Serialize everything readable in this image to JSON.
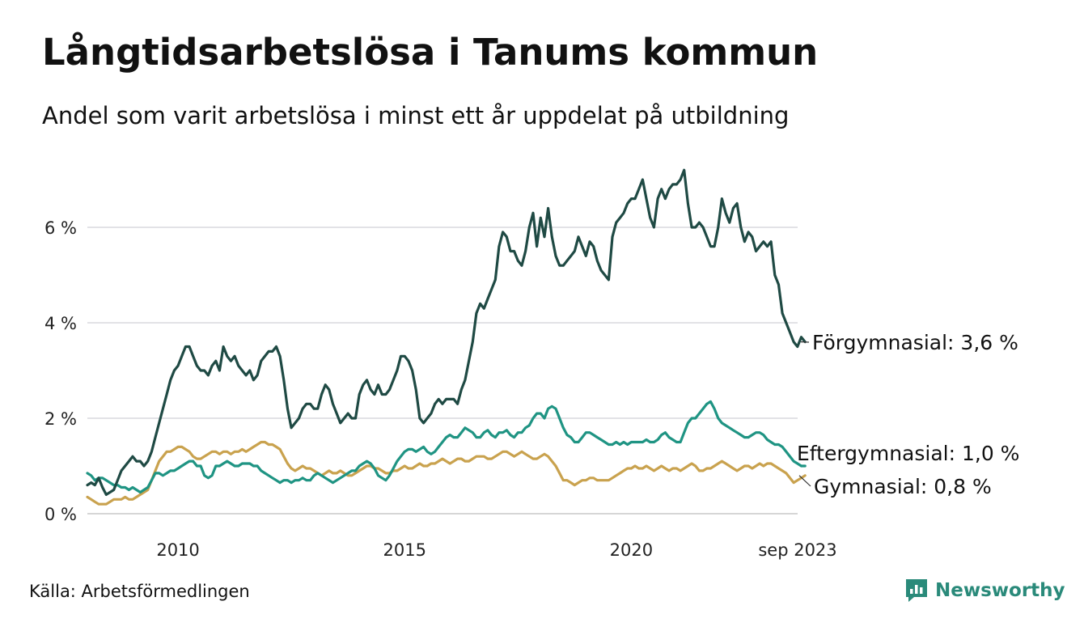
{
  "title": "Långtidsarbetslösa i Tanums kommun",
  "subtitle": "Andel som varit arbetslösa i minst ett år uppdelat på utbildning",
  "source": "Källa: Arbetsförmedlingen",
  "logo": {
    "text": "Newsworthy",
    "icon": "newsworthy-chart-icon",
    "color": "#2a8a7a"
  },
  "chart_data": {
    "type": "line",
    "title": "Långtidsarbetslösa i Tanums kommun",
    "xlabel": "",
    "ylabel": "",
    "x_start": 2008.0,
    "x_step": 0.0833333,
    "xlim": [
      2008.0,
      2023.67
    ],
    "ylim": [
      0,
      7.3
    ],
    "y_ticks": [
      0,
      2,
      4,
      6
    ],
    "y_tick_labels": [
      "0 %",
      "2 %",
      "4 %",
      "6 %"
    ],
    "x_ticks": [
      2010,
      2015,
      2020,
      2023.67
    ],
    "x_tick_labels": [
      "2010",
      "2015",
      "2020",
      "sep 2023"
    ],
    "grid": true,
    "series": [
      {
        "name": "Förgymnasial",
        "label": "Förgymnasial: 3,6 %",
        "color": "#1f4a44",
        "values": [
          0.6,
          0.65,
          0.6,
          0.75,
          0.55,
          0.4,
          0.45,
          0.5,
          0.7,
          0.9,
          1.0,
          1.1,
          1.2,
          1.1,
          1.1,
          1.0,
          1.1,
          1.3,
          1.6,
          1.9,
          2.2,
          2.5,
          2.8,
          3.0,
          3.1,
          3.3,
          3.5,
          3.5,
          3.3,
          3.1,
          3.0,
          3.0,
          2.9,
          3.1,
          3.2,
          3.0,
          3.5,
          3.3,
          3.2,
          3.3,
          3.1,
          3.0,
          2.9,
          3.0,
          2.8,
          2.9,
          3.2,
          3.3,
          3.4,
          3.4,
          3.5,
          3.3,
          2.8,
          2.2,
          1.8,
          1.9,
          2.0,
          2.2,
          2.3,
          2.3,
          2.2,
          2.2,
          2.5,
          2.7,
          2.6,
          2.3,
          2.1,
          1.9,
          2.0,
          2.1,
          2.0,
          2.0,
          2.5,
          2.7,
          2.8,
          2.6,
          2.5,
          2.7,
          2.5,
          2.5,
          2.6,
          2.8,
          3.0,
          3.3,
          3.3,
          3.2,
          3.0,
          2.6,
          2.0,
          1.9,
          2.0,
          2.1,
          2.3,
          2.4,
          2.3,
          2.4,
          2.4,
          2.4,
          2.3,
          2.6,
          2.8,
          3.2,
          3.6,
          4.2,
          4.4,
          4.3,
          4.5,
          4.7,
          4.9,
          5.6,
          5.9,
          5.8,
          5.5,
          5.5,
          5.3,
          5.2,
          5.5,
          6.0,
          6.3,
          5.6,
          6.2,
          5.8,
          6.4,
          5.8,
          5.4,
          5.2,
          5.2,
          5.3,
          5.4,
          5.5,
          5.8,
          5.6,
          5.4,
          5.7,
          5.6,
          5.3,
          5.1,
          5.0,
          4.9,
          5.8,
          6.1,
          6.2,
          6.3,
          6.5,
          6.6,
          6.6,
          6.8,
          7.0,
          6.6,
          6.2,
          6.0,
          6.6,
          6.8,
          6.6,
          6.8,
          6.9,
          6.9,
          7.0,
          7.2,
          6.5,
          6.0,
          6.0,
          6.1,
          6.0,
          5.8,
          5.6,
          5.6,
          6.0,
          6.6,
          6.3,
          6.1,
          6.4,
          6.5,
          6.0,
          5.7,
          5.9,
          5.8,
          5.5,
          5.6,
          5.7,
          5.6,
          5.7,
          5.0,
          4.8,
          4.2,
          4.0,
          3.8,
          3.6,
          3.5,
          3.7,
          3.6
        ]
      },
      {
        "name": "Eftergymnasial",
        "label": "Eftergymnasial: 1,0 %",
        "color": "#1f9483",
        "values": [
          0.85,
          0.8,
          0.7,
          0.75,
          0.75,
          0.7,
          0.65,
          0.6,
          0.6,
          0.55,
          0.55,
          0.5,
          0.55,
          0.5,
          0.45,
          0.5,
          0.55,
          0.7,
          0.85,
          0.85,
          0.8,
          0.85,
          0.9,
          0.9,
          0.95,
          1.0,
          1.05,
          1.1,
          1.1,
          1.0,
          1.0,
          0.8,
          0.75,
          0.8,
          1.0,
          1.0,
          1.05,
          1.1,
          1.05,
          1.0,
          1.0,
          1.05,
          1.05,
          1.05,
          1.0,
          1.0,
          0.9,
          0.85,
          0.8,
          0.75,
          0.7,
          0.65,
          0.7,
          0.7,
          0.65,
          0.7,
          0.7,
          0.75,
          0.7,
          0.7,
          0.8,
          0.85,
          0.8,
          0.75,
          0.7,
          0.65,
          0.7,
          0.75,
          0.8,
          0.85,
          0.9,
          0.9,
          1.0,
          1.05,
          1.1,
          1.05,
          0.95,
          0.8,
          0.75,
          0.7,
          0.8,
          0.95,
          1.1,
          1.2,
          1.3,
          1.35,
          1.35,
          1.3,
          1.35,
          1.4,
          1.3,
          1.25,
          1.3,
          1.4,
          1.5,
          1.6,
          1.65,
          1.6,
          1.6,
          1.7,
          1.8,
          1.75,
          1.7,
          1.6,
          1.6,
          1.7,
          1.75,
          1.65,
          1.6,
          1.7,
          1.7,
          1.75,
          1.65,
          1.6,
          1.7,
          1.7,
          1.8,
          1.85,
          2.0,
          2.1,
          2.1,
          2.0,
          2.2,
          2.25,
          2.2,
          2.0,
          1.8,
          1.65,
          1.6,
          1.5,
          1.5,
          1.6,
          1.7,
          1.7,
          1.65,
          1.6,
          1.55,
          1.5,
          1.45,
          1.45,
          1.5,
          1.45,
          1.5,
          1.45,
          1.5,
          1.5,
          1.5,
          1.5,
          1.55,
          1.5,
          1.5,
          1.55,
          1.65,
          1.7,
          1.6,
          1.55,
          1.5,
          1.5,
          1.7,
          1.9,
          2.0,
          2.0,
          2.1,
          2.2,
          2.3,
          2.35,
          2.2,
          2.0,
          1.9,
          1.85,
          1.8,
          1.75,
          1.7,
          1.65,
          1.6,
          1.6,
          1.65,
          1.7,
          1.7,
          1.65,
          1.55,
          1.5,
          1.45,
          1.45,
          1.4,
          1.3,
          1.2,
          1.1,
          1.05,
          1.0,
          1.0
        ]
      },
      {
        "name": "Gymnasial",
        "label": "Gymnasial: 0,8 %",
        "color": "#c9a24e",
        "values": [
          0.35,
          0.3,
          0.25,
          0.2,
          0.2,
          0.2,
          0.25,
          0.3,
          0.3,
          0.3,
          0.35,
          0.3,
          0.3,
          0.35,
          0.4,
          0.45,
          0.5,
          0.7,
          0.9,
          1.1,
          1.2,
          1.3,
          1.3,
          1.35,
          1.4,
          1.4,
          1.35,
          1.3,
          1.2,
          1.15,
          1.15,
          1.2,
          1.25,
          1.3,
          1.3,
          1.25,
          1.3,
          1.3,
          1.25,
          1.3,
          1.3,
          1.35,
          1.3,
          1.35,
          1.4,
          1.45,
          1.5,
          1.5,
          1.45,
          1.45,
          1.4,
          1.35,
          1.2,
          1.05,
          0.95,
          0.9,
          0.95,
          1.0,
          0.95,
          0.95,
          0.9,
          0.85,
          0.8,
          0.85,
          0.9,
          0.85,
          0.85,
          0.9,
          0.85,
          0.8,
          0.8,
          0.85,
          0.9,
          0.95,
          1.0,
          1.0,
          0.95,
          0.95,
          0.9,
          0.85,
          0.85,
          0.9,
          0.9,
          0.95,
          1.0,
          0.95,
          0.95,
          1.0,
          1.05,
          1.0,
          1.0,
          1.05,
          1.05,
          1.1,
          1.15,
          1.1,
          1.05,
          1.1,
          1.15,
          1.15,
          1.1,
          1.1,
          1.15,
          1.2,
          1.2,
          1.2,
          1.15,
          1.15,
          1.2,
          1.25,
          1.3,
          1.3,
          1.25,
          1.2,
          1.25,
          1.3,
          1.25,
          1.2,
          1.15,
          1.15,
          1.2,
          1.25,
          1.2,
          1.1,
          1.0,
          0.85,
          0.7,
          0.7,
          0.65,
          0.6,
          0.65,
          0.7,
          0.7,
          0.75,
          0.75,
          0.7,
          0.7,
          0.7,
          0.7,
          0.75,
          0.8,
          0.85,
          0.9,
          0.95,
          0.95,
          1.0,
          0.95,
          0.95,
          1.0,
          0.95,
          0.9,
          0.95,
          1.0,
          0.95,
          0.9,
          0.95,
          0.95,
          0.9,
          0.95,
          1.0,
          1.05,
          1.0,
          0.9,
          0.9,
          0.95,
          0.95,
          1.0,
          1.05,
          1.1,
          1.05,
          1.0,
          0.95,
          0.9,
          0.95,
          1.0,
          1.0,
          0.95,
          1.0,
          1.05,
          1.0,
          1.05,
          1.05,
          1.0,
          0.95,
          0.9,
          0.85,
          0.75,
          0.65,
          0.7,
          0.75,
          0.8
        ]
      }
    ]
  }
}
